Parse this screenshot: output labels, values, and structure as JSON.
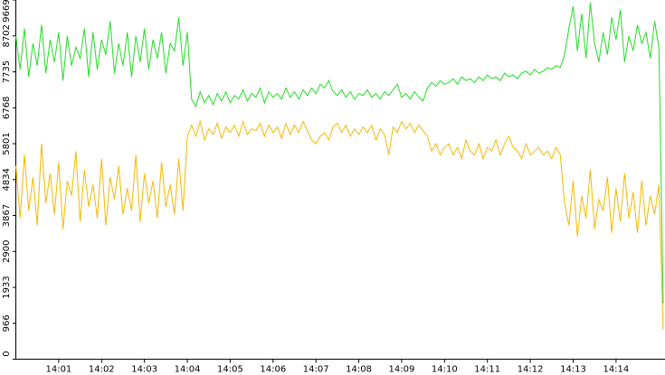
{
  "chart_data": {
    "type": "line",
    "categories": [
      null,
      null,
      null,
      null,
      null,
      null,
      null,
      null,
      null,
      null,
      "14:01",
      null,
      null,
      null,
      null,
      null,
      null,
      null,
      null,
      null,
      "14:02",
      null,
      null,
      null,
      null,
      null,
      null,
      null,
      null,
      null,
      "14:03",
      null,
      null,
      null,
      null,
      null,
      null,
      null,
      null,
      null,
      "14:04",
      null,
      null,
      null,
      null,
      null,
      null,
      null,
      null,
      null,
      "14:05",
      null,
      null,
      null,
      null,
      null,
      null,
      null,
      null,
      null,
      "14:06",
      null,
      null,
      null,
      null,
      null,
      null,
      null,
      null,
      null,
      "14:07",
      null,
      null,
      null,
      null,
      null,
      null,
      null,
      null,
      null,
      "14:08",
      null,
      null,
      null,
      null,
      null,
      null,
      null,
      null,
      null,
      "14:09",
      null,
      null,
      null,
      null,
      null,
      null,
      null,
      null,
      null,
      "14:10",
      null,
      null,
      null,
      null,
      null,
      null,
      null,
      null,
      null,
      "14:11",
      null,
      null,
      null,
      null,
      null,
      null,
      null,
      null,
      null,
      "14:12",
      null,
      null,
      null,
      null,
      null,
      null,
      null,
      null,
      null,
      "14:13",
      null,
      null,
      null,
      null,
      null,
      null,
      null,
      null,
      null,
      "14:14",
      null,
      null,
      null,
      null,
      null,
      null,
      null,
      null,
      null,
      null,
      null
    ],
    "series": [
      {
        "color": "#f5b800",
        "values": [
          5200,
          3800,
          5500,
          4000,
          4900,
          3600,
          5800,
          4200,
          5000,
          3900,
          5300,
          3500,
          4800,
          4400,
          5600,
          3700,
          5100,
          4100,
          4700,
          3800,
          5400,
          3600,
          4900,
          4300,
          5200,
          3900,
          4600,
          4000,
          5500,
          3700,
          5000,
          4200,
          4800,
          3800,
          5300,
          4100,
          4700,
          3900,
          5400,
          4000,
          6000,
          6300,
          6000,
          6400,
          5900,
          6200,
          6050,
          6350,
          5950,
          6250,
          6100,
          6300,
          6000,
          6400,
          6050,
          6200,
          6150,
          6350,
          6000,
          6300,
          6100,
          6250,
          5950,
          6350,
          6050,
          6300,
          6100,
          6400,
          6150,
          5900,
          5800,
          6000,
          6100,
          5900,
          6250,
          6350,
          6100,
          6300,
          6000,
          6200,
          6050,
          6250,
          6100,
          6300,
          5900,
          6200,
          6050,
          5500,
          6250,
          6100,
          6400,
          6200,
          6350,
          6100,
          6300,
          6150,
          6000,
          5600,
          5800,
          5500,
          5700,
          5800,
          5500,
          5700,
          5400,
          5900,
          5600,
          5500,
          5800,
          5400,
          5700,
          5600,
          5900,
          5500,
          5800,
          6000,
          5700,
          5600,
          5400,
          5800,
          5500,
          5600,
          5700,
          5500,
          5600,
          5400,
          5700,
          5500,
          4200,
          3600,
          4800,
          3300,
          4400,
          3800,
          5100,
          3500,
          4300,
          4000,
          4900,
          3400,
          4600,
          3700,
          5000,
          3800,
          4500,
          3400,
          4800,
          3600,
          4400,
          3900,
          4700,
          800
        ]
      },
      {
        "color": "#22dd22",
        "values": [
          8700,
          7800,
          8900,
          7600,
          8500,
          7900,
          9000,
          7700,
          8600,
          8000,
          8800,
          7500,
          8700,
          7900,
          8400,
          8100,
          8900,
          7600,
          8800,
          7800,
          8600,
          8200,
          9100,
          7700,
          8500,
          7900,
          8800,
          7600,
          8700,
          8000,
          8900,
          7800,
          8600,
          8100,
          8800,
          7700,
          8500,
          8300,
          9200,
          7900,
          8800,
          7000,
          6800,
          7200,
          6900,
          7100,
          6850,
          7150,
          6950,
          7200,
          6900,
          7100,
          7000,
          7250,
          6950,
          7150,
          7050,
          7300,
          6900,
          7200,
          7050,
          7150,
          7000,
          7300,
          7050,
          7200,
          7000,
          7250,
          7100,
          7300,
          7150,
          7400,
          7300,
          7500,
          7200,
          7100,
          7250,
          7050,
          7200,
          7000,
          7150,
          7100,
          7250,
          7050,
          7150,
          7000,
          7200,
          7100,
          7250,
          7400,
          7050,
          7150,
          7000,
          7200,
          7050,
          6950,
          7300,
          7450,
          7350,
          7500,
          7400,
          7450,
          7550,
          7400,
          7600,
          7500,
          7550,
          7450,
          7600,
          7500,
          7650,
          7550,
          7600,
          7500,
          7700,
          7600,
          7650,
          7550,
          7700,
          7750,
          7650,
          7800,
          7700,
          7750,
          7850,
          7800,
          7900,
          7850,
          8200,
          8900,
          9500,
          8300,
          9300,
          8100,
          9600,
          8500,
          8000,
          8800,
          8200,
          9200,
          8600,
          9400,
          8000,
          8700,
          8300,
          9000,
          8500,
          8800,
          8100,
          9100,
          8400,
          1500
        ]
      }
    ],
    "ylim": [
      0,
      9669
    ],
    "yticks": [
      0,
      966,
      1933,
      2900,
      3867,
      4834,
      5801,
      6768,
      7735,
      8702,
      9669
    ]
  }
}
